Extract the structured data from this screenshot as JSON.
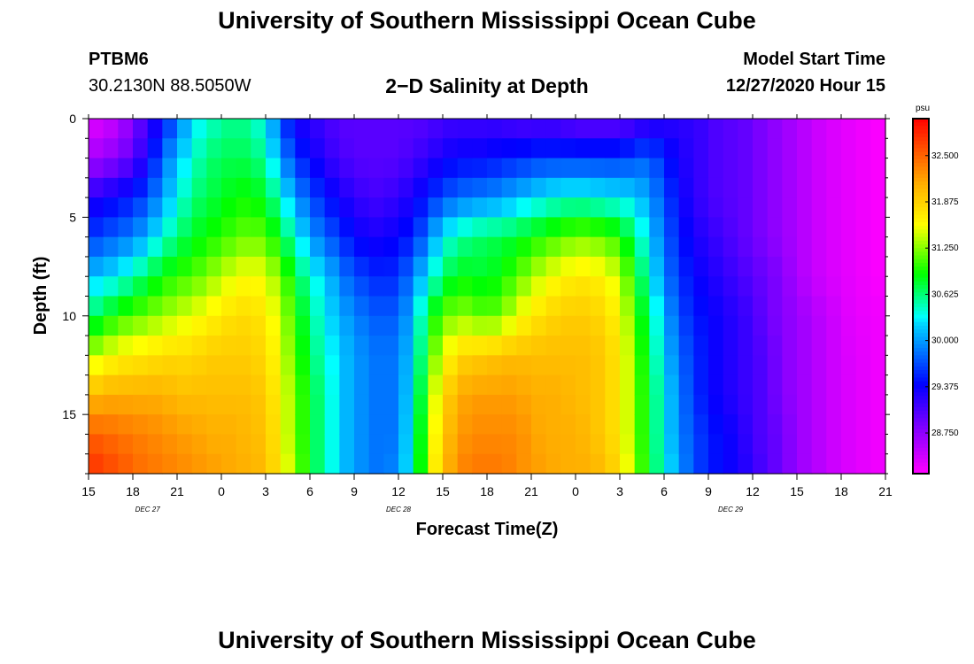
{
  "header": {
    "title": "University of Southern Mississippi Ocean Cube",
    "station_id": "PTBM6",
    "station_coords": "30.2130N 88.5050W",
    "plot_title": "2−D Salinity at Depth",
    "run_label": "Model Start Time",
    "run_value": "12/27/2020 Hour 15"
  },
  "footer": {
    "title": "University of Southern Mississippi Ocean Cube"
  },
  "chart_data": {
    "type": "heatmap",
    "title": "2−D Salinity at Depth",
    "xlabel": "Forecast Time(Z)",
    "ylabel": "Depth (ft)",
    "x_hours": [
      0,
      3,
      6,
      9,
      12,
      15,
      18,
      21,
      24,
      27,
      30,
      33,
      36,
      39,
      42,
      45,
      48,
      51,
      54
    ],
    "x_tick_labels": [
      "15",
      "18",
      "21",
      "0",
      "3",
      "6",
      "9",
      "12",
      "15",
      "18",
      "21",
      "0",
      "3",
      "6",
      "9",
      "12",
      "15",
      "18",
      "21"
    ],
    "date_labels": [
      {
        "hour": 4,
        "text": "DEC  27"
      },
      {
        "hour": 21,
        "text": "DEC  28"
      },
      {
        "hour": 43.5,
        "text": "DEC  29"
      }
    ],
    "xlim": [
      0,
      54
    ],
    "ylim": [
      0,
      18
    ],
    "y_ticks": [
      0,
      5,
      10,
      15
    ],
    "colorbar": {
      "unit": "psu",
      "min": 28.2,
      "max": 33.0,
      "ticks": [
        28.75,
        29.375,
        30.0,
        30.625,
        31.25,
        31.875,
        32.5
      ],
      "tick_labels": [
        "28.750",
        "29.375",
        "30.000",
        "30.625",
        "31.250",
        "31.875",
        "32.500"
      ]
    },
    "profiles": {
      "depths_ft": [
        0,
        2,
        4,
        6,
        8,
        10,
        12,
        14,
        16,
        18
      ],
      "hours": [
        0,
        1,
        2,
        3,
        4,
        5,
        6,
        7,
        8,
        9,
        10,
        11,
        12,
        13,
        14,
        15,
        16,
        17,
        18,
        19,
        20,
        21,
        22,
        23,
        24,
        25,
        26,
        27,
        28,
        29,
        30,
        31,
        32,
        33,
        34,
        35,
        36,
        37,
        38,
        39,
        40,
        41,
        42,
        43,
        44,
        45,
        46,
        47,
        48,
        49,
        50,
        51,
        52,
        53,
        54
      ],
      "values": [
        [
          28.3,
          28.6,
          29.2,
          29.6,
          30.1,
          30.6,
          31.3,
          32.0,
          32.5,
          32.8
        ],
        [
          28.4,
          28.7,
          29.3,
          29.7,
          30.2,
          30.8,
          31.5,
          32.1,
          32.5,
          32.7
        ],
        [
          28.5,
          28.8,
          29.4,
          29.8,
          30.3,
          31.0,
          31.6,
          32.1,
          32.4,
          32.6
        ],
        [
          28.8,
          29.0,
          29.5,
          29.9,
          30.5,
          31.1,
          31.7,
          32.1,
          32.4,
          32.5
        ],
        [
          29.1,
          29.3,
          29.7,
          30.1,
          30.7,
          31.2,
          31.7,
          32.1,
          32.3,
          32.4
        ],
        [
          29.4,
          29.8,
          30.0,
          30.4,
          30.9,
          31.3,
          31.8,
          32.1,
          32.3,
          32.4
        ],
        [
          29.8,
          30.1,
          30.3,
          30.6,
          31.0,
          31.4,
          31.8,
          32.0,
          32.2,
          32.3
        ],
        [
          30.2,
          30.4,
          30.6,
          30.8,
          31.1,
          31.5,
          31.8,
          32.0,
          32.2,
          32.3
        ],
        [
          30.4,
          30.6,
          30.7,
          30.9,
          31.2,
          31.6,
          31.9,
          32.0,
          32.1,
          32.2
        ],
        [
          30.5,
          30.7,
          30.8,
          31.0,
          31.4,
          31.7,
          31.9,
          32.0,
          32.1,
          32.2
        ],
        [
          30.6,
          30.7,
          30.9,
          31.1,
          31.5,
          31.8,
          31.9,
          32.0,
          32.1,
          32.1
        ],
        [
          30.5,
          30.7,
          30.9,
          31.2,
          31.6,
          31.8,
          31.9,
          32.0,
          32.0,
          32.1
        ],
        [
          30.3,
          30.5,
          30.8,
          31.1,
          31.5,
          31.7,
          31.8,
          31.9,
          32.0,
          32.0
        ],
        [
          29.7,
          30.0,
          30.4,
          30.8,
          31.2,
          31.4,
          31.5,
          31.6,
          31.6,
          31.7
        ],
        [
          29.3,
          29.6,
          30.0,
          30.4,
          30.8,
          31.0,
          31.1,
          31.2,
          31.2,
          31.3
        ],
        [
          29.2,
          29.4,
          29.7,
          30.0,
          30.4,
          30.6,
          30.7,
          30.8,
          30.8,
          30.8
        ],
        [
          29.1,
          29.2,
          29.5,
          29.8,
          30.2,
          30.3,
          30.4,
          30.5,
          30.5,
          30.5
        ],
        [
          29.0,
          29.1,
          29.3,
          29.6,
          29.9,
          30.1,
          30.2,
          30.2,
          30.2,
          30.2
        ],
        [
          29.0,
          29.0,
          29.2,
          29.4,
          29.7,
          29.9,
          30.0,
          30.0,
          30.0,
          30.0
        ],
        [
          29.0,
          29.0,
          29.1,
          29.3,
          29.6,
          29.8,
          29.9,
          29.9,
          29.9,
          29.9
        ],
        [
          29.0,
          29.0,
          29.1,
          29.3,
          29.5,
          29.7,
          29.8,
          29.8,
          29.8,
          29.8
        ],
        [
          29.0,
          29.0,
          29.2,
          29.4,
          29.6,
          29.8,
          29.9,
          29.9,
          29.9,
          30.0
        ],
        [
          29.0,
          29.1,
          29.3,
          29.5,
          29.9,
          30.1,
          30.2,
          30.3,
          30.4,
          30.4
        ],
        [
          29.0,
          29.2,
          29.5,
          29.9,
          30.3,
          30.8,
          31.0,
          31.2,
          31.3,
          31.4
        ],
        [
          29.1,
          29.3,
          29.7,
          30.3,
          30.6,
          31.1,
          31.5,
          31.8,
          31.9,
          32.0
        ],
        [
          29.1,
          29.4,
          29.8,
          30.5,
          30.9,
          31.3,
          31.8,
          32.1,
          32.2,
          32.3
        ],
        [
          29.1,
          29.4,
          29.9,
          30.6,
          30.8,
          31.2,
          31.9,
          32.2,
          32.3,
          32.4
        ],
        [
          29.1,
          29.4,
          29.9,
          30.7,
          30.8,
          31.1,
          31.9,
          32.2,
          32.3,
          32.4
        ],
        [
          29.1,
          29.5,
          30.0,
          30.7,
          30.9,
          31.2,
          32.0,
          32.2,
          32.3,
          32.4
        ],
        [
          29.0,
          29.5,
          30.1,
          30.8,
          31.1,
          31.5,
          32.0,
          32.2,
          32.3,
          32.3
        ],
        [
          29.0,
          29.6,
          30.2,
          30.9,
          31.3,
          31.7,
          32.0,
          32.1,
          32.2,
          32.2
        ],
        [
          29.0,
          29.6,
          30.3,
          31.0,
          31.5,
          31.8,
          32.0,
          32.1,
          32.1,
          32.2
        ],
        [
          29.0,
          29.6,
          30.4,
          31.1,
          31.6,
          31.9,
          32.0,
          32.1,
          32.1,
          32.1
        ],
        [
          28.9,
          29.6,
          30.4,
          31.2,
          31.7,
          31.9,
          32.0,
          32.0,
          32.1,
          32.1
        ],
        [
          28.9,
          29.6,
          30.4,
          31.2,
          31.7,
          31.9,
          32.0,
          32.0,
          32.0,
          32.1
        ],
        [
          28.9,
          29.6,
          30.3,
          31.1,
          31.6,
          31.8,
          31.9,
          31.9,
          31.9,
          32.0
        ],
        [
          28.9,
          29.6,
          30.3,
          31.0,
          31.4,
          31.6,
          31.7,
          31.7,
          31.7,
          31.8
        ],
        [
          29.0,
          29.7,
          30.2,
          30.6,
          30.9,
          31.1,
          31.2,
          31.2,
          31.2,
          31.3
        ],
        [
          29.1,
          29.8,
          30.0,
          30.2,
          30.4,
          30.6,
          30.7,
          30.8,
          30.8,
          30.8
        ],
        [
          29.2,
          29.5,
          29.7,
          29.8,
          29.9,
          30.1,
          30.2,
          30.3,
          30.3,
          30.4
        ],
        [
          29.2,
          29.3,
          29.4,
          29.5,
          29.6,
          29.7,
          29.8,
          29.9,
          29.9,
          30.0
        ],
        [
          29.2,
          29.2,
          29.2,
          29.3,
          29.4,
          29.5,
          29.6,
          29.6,
          29.7,
          29.7
        ],
        [
          29.1,
          29.1,
          29.1,
          29.2,
          29.3,
          29.4,
          29.4,
          29.4,
          29.5,
          29.5
        ],
        [
          29.0,
          29.0,
          29.0,
          29.1,
          29.2,
          29.3,
          29.3,
          29.3,
          29.4,
          29.4
        ],
        [
          29.0,
          29.0,
          29.0,
          29.0,
          29.1,
          29.2,
          29.2,
          29.2,
          29.3,
          29.3
        ],
        [
          28.9,
          28.9,
          28.9,
          28.9,
          29.0,
          29.1,
          29.1,
          29.1,
          29.1,
          29.2
        ],
        [
          28.8,
          28.8,
          28.8,
          28.8,
          28.9,
          28.9,
          29.0,
          29.0,
          29.0,
          29.0
        ],
        [
          28.7,
          28.7,
          28.7,
          28.7,
          28.8,
          28.8,
          28.8,
          28.8,
          28.9,
          28.9
        ],
        [
          28.6,
          28.6,
          28.6,
          28.6,
          28.6,
          28.7,
          28.7,
          28.7,
          28.7,
          28.7
        ],
        [
          28.5,
          28.5,
          28.5,
          28.5,
          28.5,
          28.6,
          28.6,
          28.6,
          28.6,
          28.6
        ],
        [
          28.4,
          28.4,
          28.4,
          28.4,
          28.4,
          28.5,
          28.5,
          28.5,
          28.5,
          28.5
        ],
        [
          28.35,
          28.35,
          28.35,
          28.35,
          28.35,
          28.4,
          28.4,
          28.4,
          28.4,
          28.4
        ],
        [
          28.3,
          28.3,
          28.3,
          28.3,
          28.3,
          28.3,
          28.35,
          28.35,
          28.35,
          28.35
        ],
        [
          28.25,
          28.25,
          28.25,
          28.25,
          28.25,
          28.3,
          28.3,
          28.3,
          28.3,
          28.3
        ],
        [
          28.2,
          28.2,
          28.2,
          28.2,
          28.2,
          28.25,
          28.25,
          28.25,
          28.25,
          28.25
        ]
      ]
    }
  }
}
